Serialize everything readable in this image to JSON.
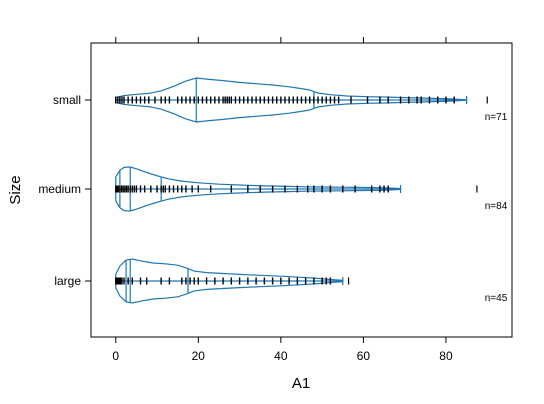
{
  "chart_data": {
    "type": "violin",
    "title": "",
    "xlabel": "A1",
    "ylabel": "Size",
    "xlim": [
      -6,
      96
    ],
    "x_ticks": [
      0,
      20,
      40,
      60,
      80
    ],
    "grid": false,
    "colors": {
      "outline": "#1f77b4",
      "rug": "#000000",
      "frame": "#000000",
      "background": "#ffffff"
    },
    "categories": [
      "large",
      "medium",
      "small"
    ],
    "series": [
      {
        "category": "large",
        "n_label": "n=45",
        "whisker_low": 0,
        "q1": 2.5,
        "median": 3.5,
        "q3": 17.5,
        "whisker_high": 55,
        "outliers": [
          56.4
        ],
        "rug": [
          0,
          0.2,
          0.4,
          0.6,
          0.8,
          1,
          1.2,
          1.5,
          2,
          3,
          4,
          6,
          7.5,
          11,
          13,
          16,
          17,
          18,
          19,
          20,
          22,
          24,
          26,
          28,
          30,
          32,
          34,
          36,
          38,
          40,
          42,
          44,
          46,
          48,
          50,
          51,
          52
        ],
        "density": [
          [
            0,
            0.32
          ],
          [
            1,
            0.68
          ],
          [
            2.5,
            0.95
          ],
          [
            4,
            1.0
          ],
          [
            6,
            0.92
          ],
          [
            9,
            0.82
          ],
          [
            12,
            0.78
          ],
          [
            15,
            0.72
          ],
          [
            17,
            0.6
          ],
          [
            19,
            0.45
          ],
          [
            22,
            0.38
          ],
          [
            26,
            0.34
          ],
          [
            30,
            0.3
          ],
          [
            35,
            0.26
          ],
          [
            40,
            0.22
          ],
          [
            45,
            0.17
          ],
          [
            49,
            0.12
          ],
          [
            52,
            0.07
          ],
          [
            55,
            0.03
          ]
        ]
      },
      {
        "category": "medium",
        "n_label": "n=84",
        "whisker_low": 0,
        "q1": 1,
        "median": 3.5,
        "q3": 11,
        "whisker_high": 69,
        "outliers": [
          87.5
        ],
        "rug": [
          0,
          0.3,
          0.6,
          1,
          1.4,
          1.8,
          2.2,
          2.6,
          3,
          3.5,
          4,
          4.5,
          5,
          6,
          7,
          8.5,
          10,
          11,
          11.5,
          12,
          13,
          14,
          15,
          16,
          17,
          18.5,
          20,
          23,
          28,
          32,
          35,
          38,
          41,
          44,
          46.5,
          48,
          50,
          52,
          55,
          58,
          62,
          64,
          65,
          66
        ],
        "density": [
          [
            0,
            0.55
          ],
          [
            1,
            0.85
          ],
          [
            2,
            0.98
          ],
          [
            3.5,
            1.0
          ],
          [
            5,
            0.92
          ],
          [
            7,
            0.78
          ],
          [
            9,
            0.66
          ],
          [
            11,
            0.55
          ],
          [
            13,
            0.45
          ],
          [
            16,
            0.36
          ],
          [
            20,
            0.28
          ],
          [
            25,
            0.22
          ],
          [
            30,
            0.18
          ],
          [
            36,
            0.14
          ],
          [
            42,
            0.12
          ],
          [
            46,
            0.1
          ],
          [
            50,
            0.09
          ],
          [
            55,
            0.08
          ],
          [
            60,
            0.07
          ],
          [
            64,
            0.06
          ],
          [
            67,
            0.04
          ],
          [
            69,
            0.02
          ]
        ]
      },
      {
        "category": "small",
        "n_label": "n=71",
        "whisker_low": 0,
        "q1": 1,
        "median": 19.5,
        "q3": 48,
        "whisker_high": 85,
        "outliers": [
          90
        ],
        "rug": [
          0,
          0.5,
          1,
          1.5,
          2,
          3,
          4,
          5,
          6,
          7,
          8,
          9.5,
          11,
          12,
          13,
          15,
          16,
          17,
          18,
          19,
          20,
          21,
          22,
          23,
          24,
          25,
          26,
          26.5,
          27,
          27.5,
          28,
          29,
          30,
          31,
          32,
          33,
          34,
          35,
          36,
          37,
          38,
          39,
          40,
          41,
          42,
          43,
          44,
          45,
          46,
          47,
          48,
          49,
          50,
          51,
          52,
          53,
          54,
          57,
          61,
          64,
          66,
          69,
          71,
          73,
          74,
          76,
          78,
          80,
          82
        ],
        "density": [
          [
            0,
            0.12
          ],
          [
            2,
            0.2
          ],
          [
            5,
            0.26
          ],
          [
            8,
            0.3
          ],
          [
            11,
            0.42
          ],
          [
            14,
            0.62
          ],
          [
            17,
            0.86
          ],
          [
            19.5,
            1.0
          ],
          [
            22,
            0.95
          ],
          [
            26,
            0.88
          ],
          [
            30,
            0.8
          ],
          [
            34,
            0.74
          ],
          [
            38,
            0.68
          ],
          [
            42,
            0.6
          ],
          [
            45,
            0.52
          ],
          [
            47,
            0.45
          ],
          [
            49,
            0.32
          ],
          [
            52,
            0.24
          ],
          [
            56,
            0.18
          ],
          [
            61,
            0.15
          ],
          [
            66,
            0.13
          ],
          [
            70,
            0.11
          ],
          [
            74,
            0.09
          ],
          [
            78,
            0.07
          ],
          [
            81,
            0.05
          ],
          [
            83,
            0.03
          ],
          [
            85,
            0.01
          ]
        ]
      }
    ]
  }
}
